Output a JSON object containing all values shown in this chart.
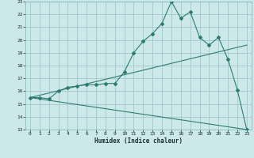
{
  "title": "",
  "xlabel": "Humidex (Indice chaleur)",
  "ylabel": "",
  "xlim": [
    -0.5,
    23.5
  ],
  "ylim": [
    13,
    23
  ],
  "yticks": [
    13,
    14,
    15,
    16,
    17,
    18,
    19,
    20,
    21,
    22,
    23
  ],
  "xticks": [
    0,
    1,
    2,
    3,
    4,
    5,
    6,
    7,
    8,
    9,
    10,
    11,
    12,
    13,
    14,
    15,
    16,
    17,
    18,
    19,
    20,
    21,
    22,
    23
  ],
  "bg_color": "#cce8e8",
  "line_color": "#2d7d6e",
  "grid_color": "#a0c8c8",
  "series1_x": [
    0,
    1,
    2,
    3,
    4,
    5,
    6,
    7,
    8,
    9,
    10,
    11,
    12,
    13,
    14,
    15,
    16,
    17,
    18,
    19,
    20,
    21,
    22,
    23
  ],
  "series1_y": [
    15.5,
    15.5,
    15.4,
    16.0,
    16.3,
    16.4,
    16.5,
    16.5,
    16.6,
    16.6,
    17.5,
    19.0,
    19.9,
    20.5,
    21.3,
    23.0,
    21.7,
    22.2,
    20.2,
    19.6,
    20.2,
    18.5,
    16.1,
    13.0
  ],
  "series2_x": [
    0,
    23
  ],
  "series2_y": [
    15.5,
    19.6
  ],
  "series3_x": [
    0,
    23
  ],
  "series3_y": [
    15.5,
    13.0
  ]
}
